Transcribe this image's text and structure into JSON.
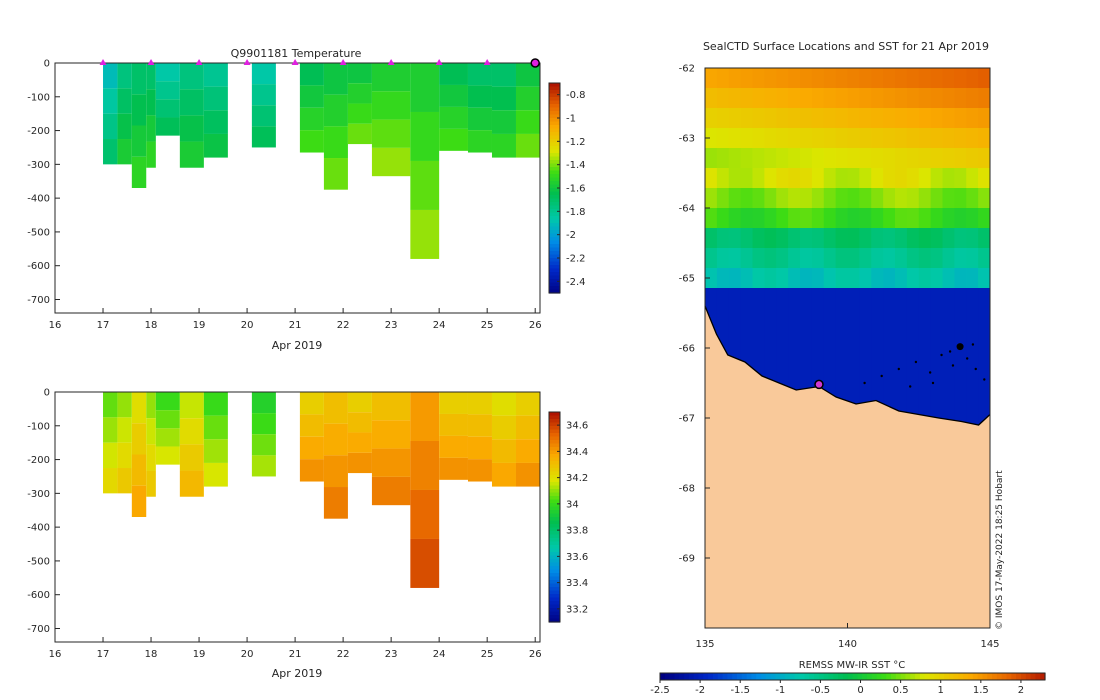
{
  "chart_data": [
    {
      "type": "heatmap",
      "title": "Q9901181  Temperature",
      "xlabel": "Apr 2019",
      "ylabel": "",
      "xlim": [
        16,
        26.1
      ],
      "ylim": [
        -740,
        0
      ],
      "xticks": [
        "16",
        "17",
        "18",
        "19",
        "20",
        "21",
        "22",
        "23",
        "24",
        "25",
        "26"
      ],
      "yticks": [
        "0",
        "-100",
        "-200",
        "-300",
        "-400",
        "-500",
        "-600",
        "-700"
      ],
      "colorbar": {
        "ticks": [
          "-0.8",
          "-1",
          "-1.2",
          "-1.4",
          "-1.6",
          "-1.8",
          "-2",
          "-2.2",
          "-2.4"
        ],
        "range": [
          -2.5,
          -0.7
        ]
      },
      "profile_markers_days": [
        17,
        18,
        19,
        20,
        21,
        22,
        23,
        24,
        25
      ],
      "profiles": [
        {
          "x0": 17.0,
          "x1": 17.3,
          "bottom": -300,
          "value": -1.8
        },
        {
          "x0": 17.3,
          "x1": 17.6,
          "bottom": -300,
          "value": -1.65
        },
        {
          "x0": 17.6,
          "x1": 17.9,
          "bottom": -370,
          "value": -1.6
        },
        {
          "x0": 17.9,
          "x1": 18.1,
          "bottom": -310,
          "value": -1.6
        },
        {
          "x0": 18.1,
          "x1": 18.6,
          "bottom": -215,
          "value": -1.75
        },
        {
          "x0": 18.6,
          "x1": 19.1,
          "bottom": -310,
          "value": -1.65
        },
        {
          "x0": 19.1,
          "x1": 19.6,
          "bottom": -280,
          "value": -1.7
        },
        {
          "x0": 20.1,
          "x1": 20.6,
          "bottom": -250,
          "value": -1.75
        },
        {
          "x0": 21.1,
          "x1": 21.6,
          "bottom": -265,
          "value": -1.55
        },
        {
          "x0": 21.6,
          "x1": 22.1,
          "bottom": -375,
          "value": -1.5
        },
        {
          "x0": 22.1,
          "x1": 22.6,
          "bottom": -240,
          "value": -1.5
        },
        {
          "x0": 22.6,
          "x1": 23.4,
          "bottom": -335,
          "value": -1.45
        },
        {
          "x0": 23.4,
          "x1": 24.0,
          "bottom": -580,
          "value": -1.45
        },
        {
          "x0": 24.0,
          "x1": 24.6,
          "bottom": -260,
          "value": -1.55
        },
        {
          "x0": 24.6,
          "x1": 25.1,
          "bottom": -265,
          "value": -1.6
        },
        {
          "x0": 25.1,
          "x1": 25.6,
          "bottom": -280,
          "value": -1.6
        },
        {
          "x0": 25.6,
          "x1": 26.1,
          "bottom": -280,
          "value": -1.5
        }
      ]
    },
    {
      "type": "heatmap",
      "title": "",
      "xlabel": "Apr 2019",
      "ylabel": "",
      "xlim": [
        16,
        26.1
      ],
      "ylim": [
        -740,
        0
      ],
      "xticks": [
        "16",
        "17",
        "18",
        "19",
        "20",
        "21",
        "22",
        "23",
        "24",
        "25",
        "26"
      ],
      "yticks": [
        "0",
        "-100",
        "-200",
        "-300",
        "-400",
        "-500",
        "-600",
        "-700"
      ],
      "colorbar": {
        "ticks": [
          "34.6",
          "34.4",
          "34.2",
          "34",
          "33.8",
          "33.6",
          "33.4",
          "33.2"
        ],
        "range": [
          33.1,
          34.7
        ]
      },
      "profiles": [
        {
          "x0": 17.0,
          "x1": 17.3,
          "bottom": -300,
          "value": 34.15
        },
        {
          "x0": 17.3,
          "x1": 17.6,
          "bottom": -300,
          "value": 34.2
        },
        {
          "x0": 17.6,
          "x1": 17.9,
          "bottom": -370,
          "value": 34.3
        },
        {
          "x0": 17.9,
          "x1": 18.1,
          "bottom": -310,
          "value": 34.2
        },
        {
          "x0": 18.1,
          "x1": 18.6,
          "bottom": -215,
          "value": 34.1
        },
        {
          "x0": 18.6,
          "x1": 19.1,
          "bottom": -310,
          "value": 34.25
        },
        {
          "x0": 19.1,
          "x1": 19.6,
          "bottom": -280,
          "value": 34.1
        },
        {
          "x0": 20.1,
          "x1": 20.6,
          "bottom": -250,
          "value": 34.05
        },
        {
          "x0": 21.1,
          "x1": 21.6,
          "bottom": -265,
          "value": 34.35
        },
        {
          "x0": 21.6,
          "x1": 22.1,
          "bottom": -375,
          "value": 34.4
        },
        {
          "x0": 22.1,
          "x1": 22.6,
          "bottom": -240,
          "value": 34.35
        },
        {
          "x0": 22.6,
          "x1": 23.4,
          "bottom": -335,
          "value": 34.4
        },
        {
          "x0": 23.4,
          "x1": 24.0,
          "bottom": -580,
          "value": 34.5
        },
        {
          "x0": 24.0,
          "x1": 24.6,
          "bottom": -260,
          "value": 34.35
        },
        {
          "x0": 24.6,
          "x1": 25.1,
          "bottom": -265,
          "value": 34.35
        },
        {
          "x0": 25.1,
          "x1": 25.6,
          "bottom": -280,
          "value": 34.3
        },
        {
          "x0": 25.6,
          "x1": 26.1,
          "bottom": -280,
          "value": 34.35
        }
      ]
    },
    {
      "type": "heatmap",
      "title": "SealCTD Surface Locations and SST for 21 Apr 2019",
      "xlabel": "",
      "ylabel": "",
      "xlim": [
        135,
        145
      ],
      "ylim": [
        -70,
        -62
      ],
      "xticks": [
        "135",
        "140",
        "145"
      ],
      "yticks": [
        "-62",
        "-63",
        "-64",
        "-65",
        "-66",
        "-67",
        "-68",
        "-69"
      ],
      "colorbar": {
        "label": "REMSS MW-IR SST °C",
        "ticks": [
          "-2.5",
          "-2",
          "-1.5",
          "-1",
          "-0.5",
          "0",
          "0.5",
          "1",
          "1.5",
          "2"
        ],
        "range": [
          -2.5,
          2.3
        ]
      },
      "credit": "© IMOS 17-May-2022 18:25 Hobart",
      "colors": {
        "land": "#f9c99a",
        "ice": "#0a4fcf",
        "marker": "#d23ad2"
      }
    }
  ]
}
